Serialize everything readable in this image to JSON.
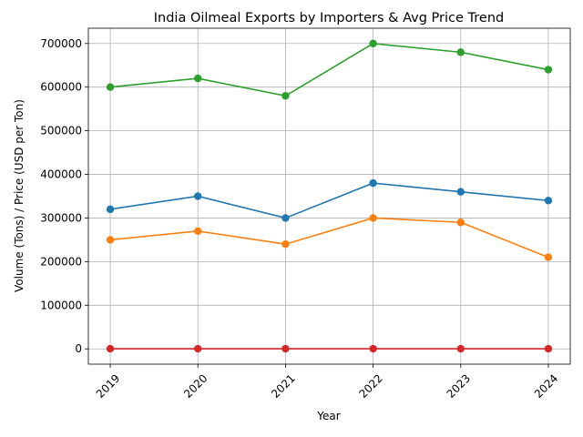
{
  "chart_data": {
    "type": "line",
    "title": "India Oilmeal Exports by Importers & Avg Price Trend",
    "xlabel": "Year",
    "ylabel": "Volume (Tons) / Price (USD per Ton)",
    "x": [
      "2019",
      "2020",
      "2021",
      "2022",
      "2023",
      "2024"
    ],
    "ylim": [
      -35000,
      735000
    ],
    "yticks": [
      0,
      100000,
      200000,
      300000,
      400000,
      500000,
      600000,
      700000
    ],
    "ytick_labels": [
      "0",
      "100000",
      "200000",
      "300000",
      "400000",
      "500000",
      "600000",
      "700000"
    ],
    "grid": true,
    "legend": "none",
    "series": [
      {
        "color": "#1f77b4",
        "values": [
          320000,
          350000,
          300000,
          380000,
          360000,
          340000
        ]
      },
      {
        "color": "#ff7f0e",
        "values": [
          250000,
          270000,
          240000,
          300000,
          290000,
          210000
        ]
      },
      {
        "color": "#2ca02c",
        "values": [
          600000,
          620000,
          580000,
          700000,
          680000,
          640000
        ]
      },
      {
        "color": "#d62728",
        "values": [
          300,
          320,
          310,
          350,
          340,
          330
        ]
      }
    ]
  }
}
